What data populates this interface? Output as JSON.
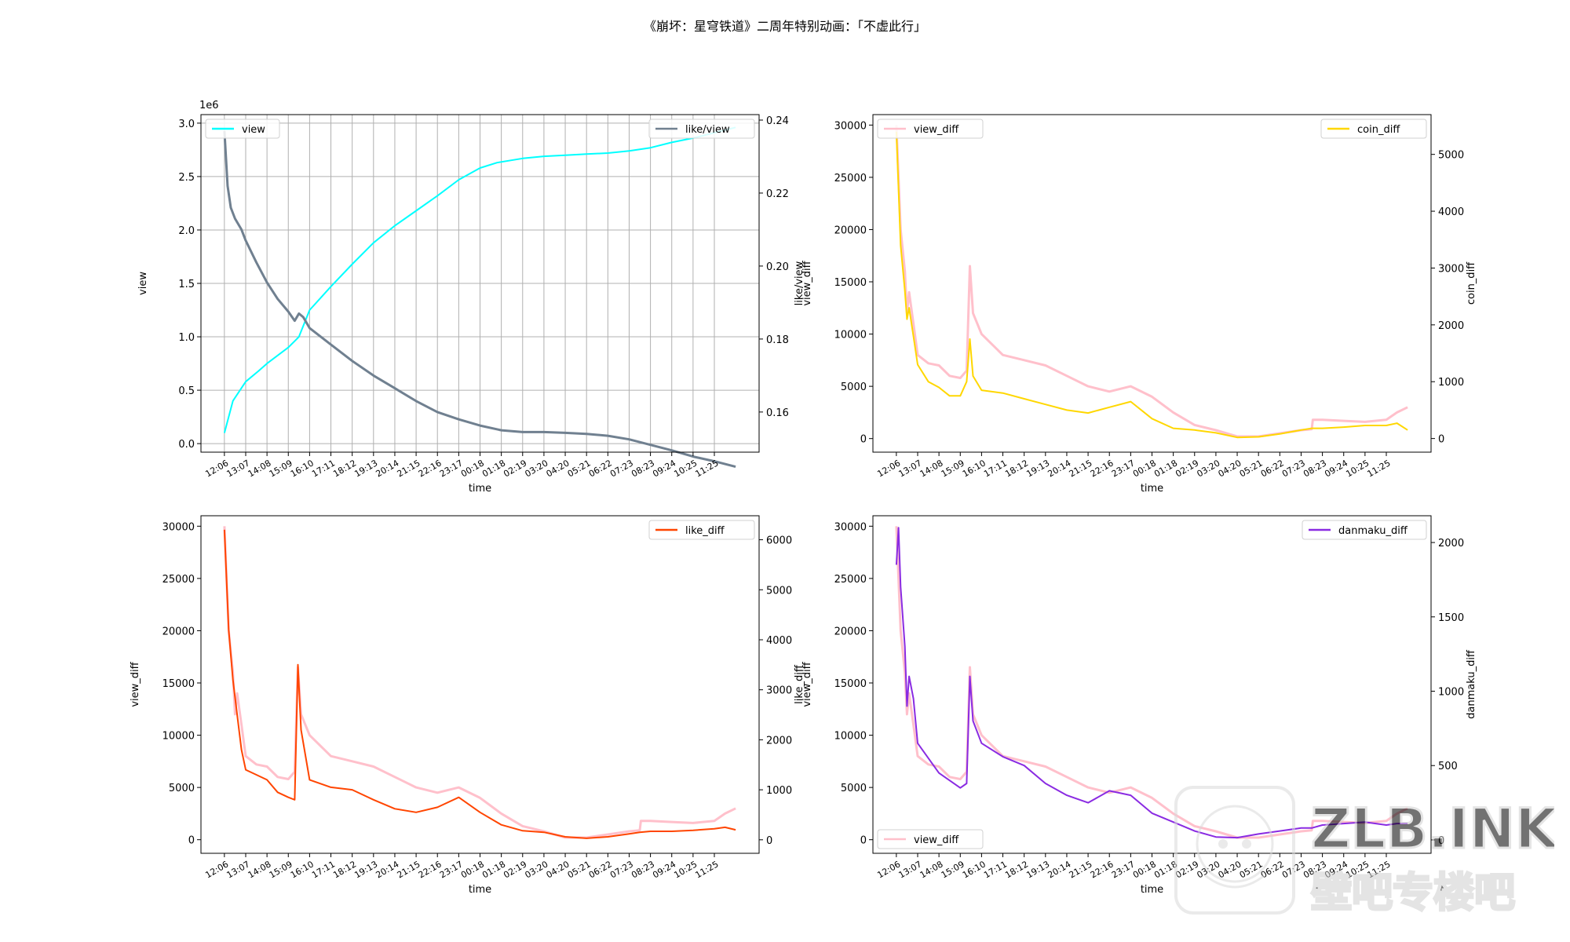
{
  "figure": {
    "suptitle": "《崩坏：星穹铁道》二周年特别动画：「不虚此行」",
    "watermark": {
      "logo_text": "ZLB.INK",
      "sub_text": "壁吧专楼吧"
    }
  },
  "chart_data": [
    {
      "type": "line",
      "id": "view",
      "xlabel": "time",
      "ylabel": "view",
      "y2label": "like/view",
      "x_ticks": [
        "12:06",
        "13:07",
        "14:08",
        "15:09",
        "16:10",
        "17:11",
        "18:12",
        "19:13",
        "20:14",
        "21:15",
        "22:16",
        "23:17",
        "00:18",
        "01:18",
        "02:19",
        "03:20",
        "04:20",
        "05:21",
        "06:22",
        "07:23",
        "08:23",
        "09:24",
        "10:25",
        "11:25"
      ],
      "grid": true,
      "ylim": [
        -0.08,
        3.08
      ],
      "yticks": [
        "0.0",
        "0.5",
        "1.0",
        "1.5",
        "2.0",
        "2.5",
        "3.0"
      ],
      "y_offset_label": "1e6",
      "y2lim": [
        0.149,
        0.2415
      ],
      "y2ticks": [
        "0.16",
        "0.18",
        "0.20",
        "0.22",
        "0.24"
      ],
      "legend_left": "top-left",
      "legend_right": "top-right",
      "series": [
        {
          "name": "view",
          "axis": "left",
          "color": "#00FFFF",
          "x": [
            0,
            0.4,
            1,
            1.6,
            2,
            3,
            3.4,
            3.5,
            4,
            5,
            6,
            7,
            8,
            9,
            10,
            11,
            12,
            12.8,
            14,
            15,
            16,
            17,
            18,
            19,
            20,
            21,
            22,
            23,
            24
          ],
          "y": [
            0.1,
            0.4,
            0.58,
            0.68,
            0.75,
            0.9,
            0.98,
            1.0,
            1.25,
            1.47,
            1.68,
            1.88,
            2.04,
            2.18,
            2.32,
            2.47,
            2.58,
            2.63,
            2.67,
            2.69,
            2.7,
            2.71,
            2.72,
            2.74,
            2.77,
            2.82,
            2.86,
            2.91,
            2.96
          ]
        },
        {
          "name": "like/view",
          "axis": "right",
          "color": "#708090",
          "x": [
            0,
            0.15,
            0.3,
            0.5,
            0.8,
            1,
            1.5,
            2,
            2.5,
            3,
            3.3,
            3.5,
            3.7,
            4,
            5,
            6,
            7,
            8,
            9,
            10,
            11,
            12,
            13,
            14,
            15,
            16,
            17,
            18,
            19,
            20,
            21,
            22,
            23,
            24
          ],
          "y": [
            0.237,
            0.222,
            0.216,
            0.213,
            0.21,
            0.207,
            0.201,
            0.1955,
            0.191,
            0.1875,
            0.185,
            0.187,
            0.186,
            0.183,
            0.1785,
            0.174,
            0.17,
            0.1665,
            0.163,
            0.16,
            0.158,
            0.1563,
            0.155,
            0.1545,
            0.1545,
            0.1543,
            0.154,
            0.1535,
            0.1525,
            0.151,
            0.1495,
            0.1478,
            0.1465,
            0.145
          ]
        }
      ]
    },
    {
      "type": "line",
      "id": "coin",
      "xlabel": "time",
      "ylabel": "view_diff",
      "y2label": "coin_diff",
      "x_ticks": [
        "12:06",
        "13:07",
        "14:08",
        "15:09",
        "16:10",
        "17:11",
        "18:12",
        "19:13",
        "20:14",
        "21:15",
        "22:16",
        "23:17",
        "00:18",
        "01:18",
        "02:19",
        "03:20",
        "04:20",
        "05:21",
        "06:22",
        "07:23",
        "08:23",
        "09:24",
        "10:25",
        "11:25"
      ],
      "grid": false,
      "ylim": [
        -1300,
        31000
      ],
      "yticks": [
        "0",
        "5000",
        "10000",
        "15000",
        "20000",
        "25000",
        "30000"
      ],
      "y2lim": [
        -240,
        5700
      ],
      "y2ticks": [
        "0",
        "1000",
        "2000",
        "3000",
        "4000",
        "5000"
      ],
      "legend_left": "top-left",
      "legend_right": "top-right",
      "series": [
        {
          "name": "view_diff",
          "axis": "left",
          "color": "#FFC0CB",
          "x": [
            0,
            0.2,
            0.4,
            0.5,
            0.6,
            0.8,
            1,
            1.5,
            2,
            2.5,
            3,
            3.3,
            3.45,
            3.6,
            4,
            5,
            6,
            7,
            8,
            9,
            10,
            11,
            12,
            13,
            14,
            15,
            16,
            17,
            18,
            19,
            19.5,
            19.55,
            20,
            21,
            22,
            23,
            23.5,
            24
          ],
          "y": [
            30000,
            20000,
            16000,
            12000,
            14000,
            11000,
            8000,
            7200,
            7000,
            6000,
            5800,
            6500,
            16500,
            12000,
            10000,
            8000,
            7500,
            7000,
            6000,
            5000,
            4500,
            5000,
            4000,
            2500,
            1300,
            800,
            200,
            200,
            500,
            800,
            900,
            1800,
            1800,
            1700,
            1600,
            1800,
            2500,
            3000
          ]
        },
        {
          "name": "coin_diff",
          "axis": "right",
          "color": "#FFD700",
          "x": [
            0,
            0.2,
            0.4,
            0.5,
            0.6,
            0.8,
            1,
            1.5,
            2,
            2.5,
            3,
            3.3,
            3.45,
            3.6,
            4,
            5,
            6,
            7,
            8,
            9,
            10,
            11,
            12,
            13,
            14,
            15,
            16,
            17,
            18,
            19,
            19.5,
            20,
            21,
            22,
            23,
            23.5,
            24
          ],
          "y": [
            5400,
            3400,
            2600,
            2100,
            2300,
            1800,
            1300,
            1000,
            900,
            750,
            750,
            1000,
            1750,
            1100,
            850,
            800,
            700,
            600,
            500,
            450,
            550,
            650,
            350,
            180,
            150,
            100,
            20,
            30,
            80,
            150,
            180,
            180,
            200,
            230,
            230,
            270,
            150
          ]
        }
      ]
    },
    {
      "type": "line",
      "id": "like",
      "xlabel": "time",
      "ylabel": "view_diff",
      "y2label": "like_diff",
      "x_ticks": [
        "12:06",
        "13:07",
        "14:08",
        "15:09",
        "16:10",
        "17:11",
        "18:12",
        "19:13",
        "20:14",
        "21:15",
        "22:16",
        "23:17",
        "00:18",
        "01:18",
        "02:19",
        "03:20",
        "04:20",
        "05:21",
        "06:22",
        "07:23",
        "08:23",
        "09:24",
        "10:25",
        "11:25"
      ],
      "grid": false,
      "ylim": [
        -1300,
        31000
      ],
      "yticks": [
        "0",
        "5000",
        "10000",
        "15000",
        "20000",
        "25000",
        "30000"
      ],
      "y2lim": [
        -270,
        6480
      ],
      "y2ticks": [
        "0",
        "1000",
        "2000",
        "3000",
        "4000",
        "5000",
        "6000"
      ],
      "legend_right": "top-right",
      "series": [
        {
          "name": "view_diff",
          "axis": "left",
          "color": "#FFC0CB",
          "x": [
            0,
            0.2,
            0.4,
            0.5,
            0.6,
            0.8,
            1,
            1.5,
            2,
            2.5,
            3,
            3.3,
            3.45,
            3.6,
            4,
            5,
            6,
            7,
            8,
            9,
            10,
            11,
            12,
            13,
            14,
            15,
            16,
            17,
            18,
            19,
            19.5,
            19.55,
            20,
            21,
            22,
            23,
            23.5,
            24
          ],
          "y": [
            30000,
            20000,
            16000,
            12000,
            14000,
            11000,
            8000,
            7200,
            7000,
            6000,
            5800,
            6500,
            16500,
            12000,
            10000,
            8000,
            7500,
            7000,
            6000,
            5000,
            4500,
            5000,
            4000,
            2500,
            1300,
            800,
            200,
            200,
            500,
            800,
            900,
            1800,
            1800,
            1700,
            1600,
            1800,
            2500,
            3000
          ]
        },
        {
          "name": "like_diff",
          "axis": "right",
          "color": "#FF4500",
          "x": [
            0,
            0.2,
            0.4,
            0.6,
            0.8,
            1,
            1.5,
            2,
            2.5,
            3,
            3.3,
            3.45,
            3.6,
            4,
            5,
            6,
            7,
            8,
            9,
            10,
            11,
            12,
            13,
            14,
            15,
            16,
            17,
            18,
            19,
            19.5,
            20,
            21,
            22,
            23,
            23.5,
            24
          ],
          "y": [
            6200,
            4200,
            3200,
            2500,
            1800,
            1400,
            1300,
            1200,
            950,
            850,
            800,
            3500,
            2200,
            1200,
            1050,
            1000,
            800,
            620,
            550,
            650,
            850,
            550,
            300,
            180,
            150,
            60,
            30,
            60,
            120,
            150,
            170,
            170,
            190,
            220,
            250,
            200
          ]
        }
      ]
    },
    {
      "type": "line",
      "id": "danmaku",
      "xlabel": "time",
      "ylabel": "view_diff",
      "y2label": "danmaku_diff",
      "x_ticks": [
        "12:06",
        "13:07",
        "14:08",
        "15:09",
        "16:10",
        "17:11",
        "18:12",
        "19:13",
        "20:14",
        "21:15",
        "22:16",
        "23:17",
        "00:18",
        "01:18",
        "02:19",
        "03:20",
        "04:20",
        "05:21",
        "06:22",
        "07:23",
        "08:23",
        "09:24",
        "10:25",
        "11:25"
      ],
      "grid": false,
      "ylim": [
        -1300,
        31000
      ],
      "yticks": [
        "0",
        "5000",
        "10000",
        "15000",
        "20000",
        "25000",
        "30000"
      ],
      "y2lim": [
        -90,
        2180
      ],
      "y2ticks": [
        "0",
        "500",
        "1000",
        "1500",
        "2000"
      ],
      "legend_left": "bottom-left",
      "legend_right": "top-right",
      "series": [
        {
          "name": "view_diff",
          "axis": "left",
          "color": "#FFC0CB",
          "x": [
            0,
            0.2,
            0.4,
            0.5,
            0.6,
            0.8,
            1,
            1.5,
            2,
            2.5,
            3,
            3.3,
            3.45,
            3.6,
            4,
            5,
            6,
            7,
            8,
            9,
            10,
            11,
            12,
            13,
            14,
            15,
            16,
            17,
            18,
            19,
            19.5,
            19.55,
            20,
            21,
            22,
            23,
            23.5,
            24
          ],
          "y": [
            30000,
            20000,
            16000,
            12000,
            14000,
            11000,
            8000,
            7200,
            7000,
            6000,
            5800,
            6500,
            16500,
            12000,
            10000,
            8000,
            7500,
            7000,
            6000,
            5000,
            4500,
            5000,
            4000,
            2500,
            1300,
            800,
            200,
            200,
            500,
            800,
            900,
            1800,
            1800,
            1700,
            1600,
            1800,
            2500,
            3000
          ]
        },
        {
          "name": "danmaku_diff",
          "axis": "right",
          "color": "#8A2BE2",
          "x": [
            0,
            0.1,
            0.2,
            0.4,
            0.5,
            0.6,
            0.8,
            1,
            1.5,
            2,
            2.5,
            3,
            3.3,
            3.45,
            3.6,
            4,
            5,
            6,
            7,
            8,
            9,
            10,
            11,
            12,
            13,
            14,
            15,
            16,
            17,
            18,
            19,
            19.5,
            20,
            21,
            22,
            23,
            23.5,
            24
          ],
          "y": [
            1850,
            2100,
            1700,
            1300,
            900,
            1100,
            950,
            650,
            550,
            450,
            400,
            350,
            380,
            1100,
            800,
            650,
            560,
            500,
            380,
            300,
            250,
            330,
            300,
            180,
            120,
            60,
            20,
            15,
            40,
            60,
            80,
            80,
            100,
            110,
            120,
            100,
            110,
            110
          ]
        }
      ]
    }
  ]
}
